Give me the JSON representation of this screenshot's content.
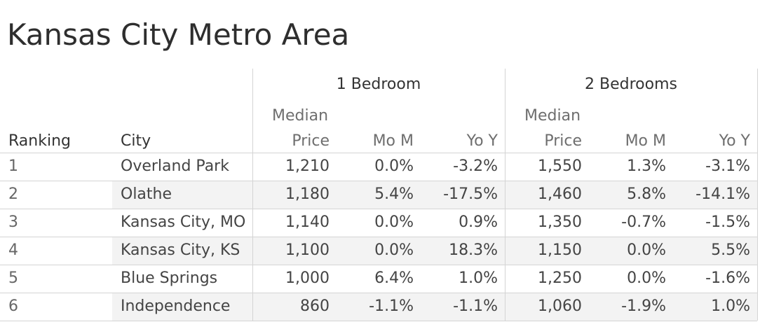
{
  "chart_data": {
    "type": "table",
    "title": "Kansas City Metro Area",
    "groups": [
      "1 Bedroom",
      "2 Bedrooms"
    ],
    "columns": [
      "Ranking",
      "City",
      "Median Price",
      "Mo M",
      "Yo Y",
      "Median Price",
      "Mo M",
      "Yo Y"
    ],
    "header": {
      "ranking": "Ranking",
      "city": "City",
      "median_top": "Median",
      "median_bottom": "Price",
      "mom": "Mo M",
      "yoy": "Yo Y"
    },
    "rows": [
      {
        "rank": "1",
        "city": "Overland Park",
        "b1_price": "1,210",
        "b1_mom": "0.0%",
        "b1_yoy": "-3.2%",
        "b2_price": "1,550",
        "b2_mom": "1.3%",
        "b2_yoy": "-3.1%"
      },
      {
        "rank": "2",
        "city": "Olathe",
        "b1_price": "1,180",
        "b1_mom": "5.4%",
        "b1_yoy": "-17.5%",
        "b2_price": "1,460",
        "b2_mom": "5.8%",
        "b2_yoy": "-14.1%"
      },
      {
        "rank": "3",
        "city": "Kansas City, MO",
        "b1_price": "1,140",
        "b1_mom": "0.0%",
        "b1_yoy": "0.9%",
        "b2_price": "1,350",
        "b2_mom": "-0.7%",
        "b2_yoy": "-1.5%"
      },
      {
        "rank": "4",
        "city": "Kansas City, KS",
        "b1_price": "1,100",
        "b1_mom": "0.0%",
        "b1_yoy": "18.3%",
        "b2_price": "1,150",
        "b2_mom": "0.0%",
        "b2_yoy": "5.5%"
      },
      {
        "rank": "5",
        "city": "Blue Springs",
        "b1_price": "1,000",
        "b1_mom": "6.4%",
        "b1_yoy": "1.0%",
        "b2_price": "1,250",
        "b2_mom": "0.0%",
        "b2_yoy": "-1.6%"
      },
      {
        "rank": "6",
        "city": "Independence",
        "b1_price": "860",
        "b1_mom": "-1.1%",
        "b1_yoy": "-1.1%",
        "b2_price": "1,060",
        "b2_mom": "-1.9%",
        "b2_yoy": "1.0%"
      }
    ],
    "colors": {
      "band": "#f3f3f3",
      "rule": "#d4d4d4",
      "text": "#444444"
    }
  }
}
